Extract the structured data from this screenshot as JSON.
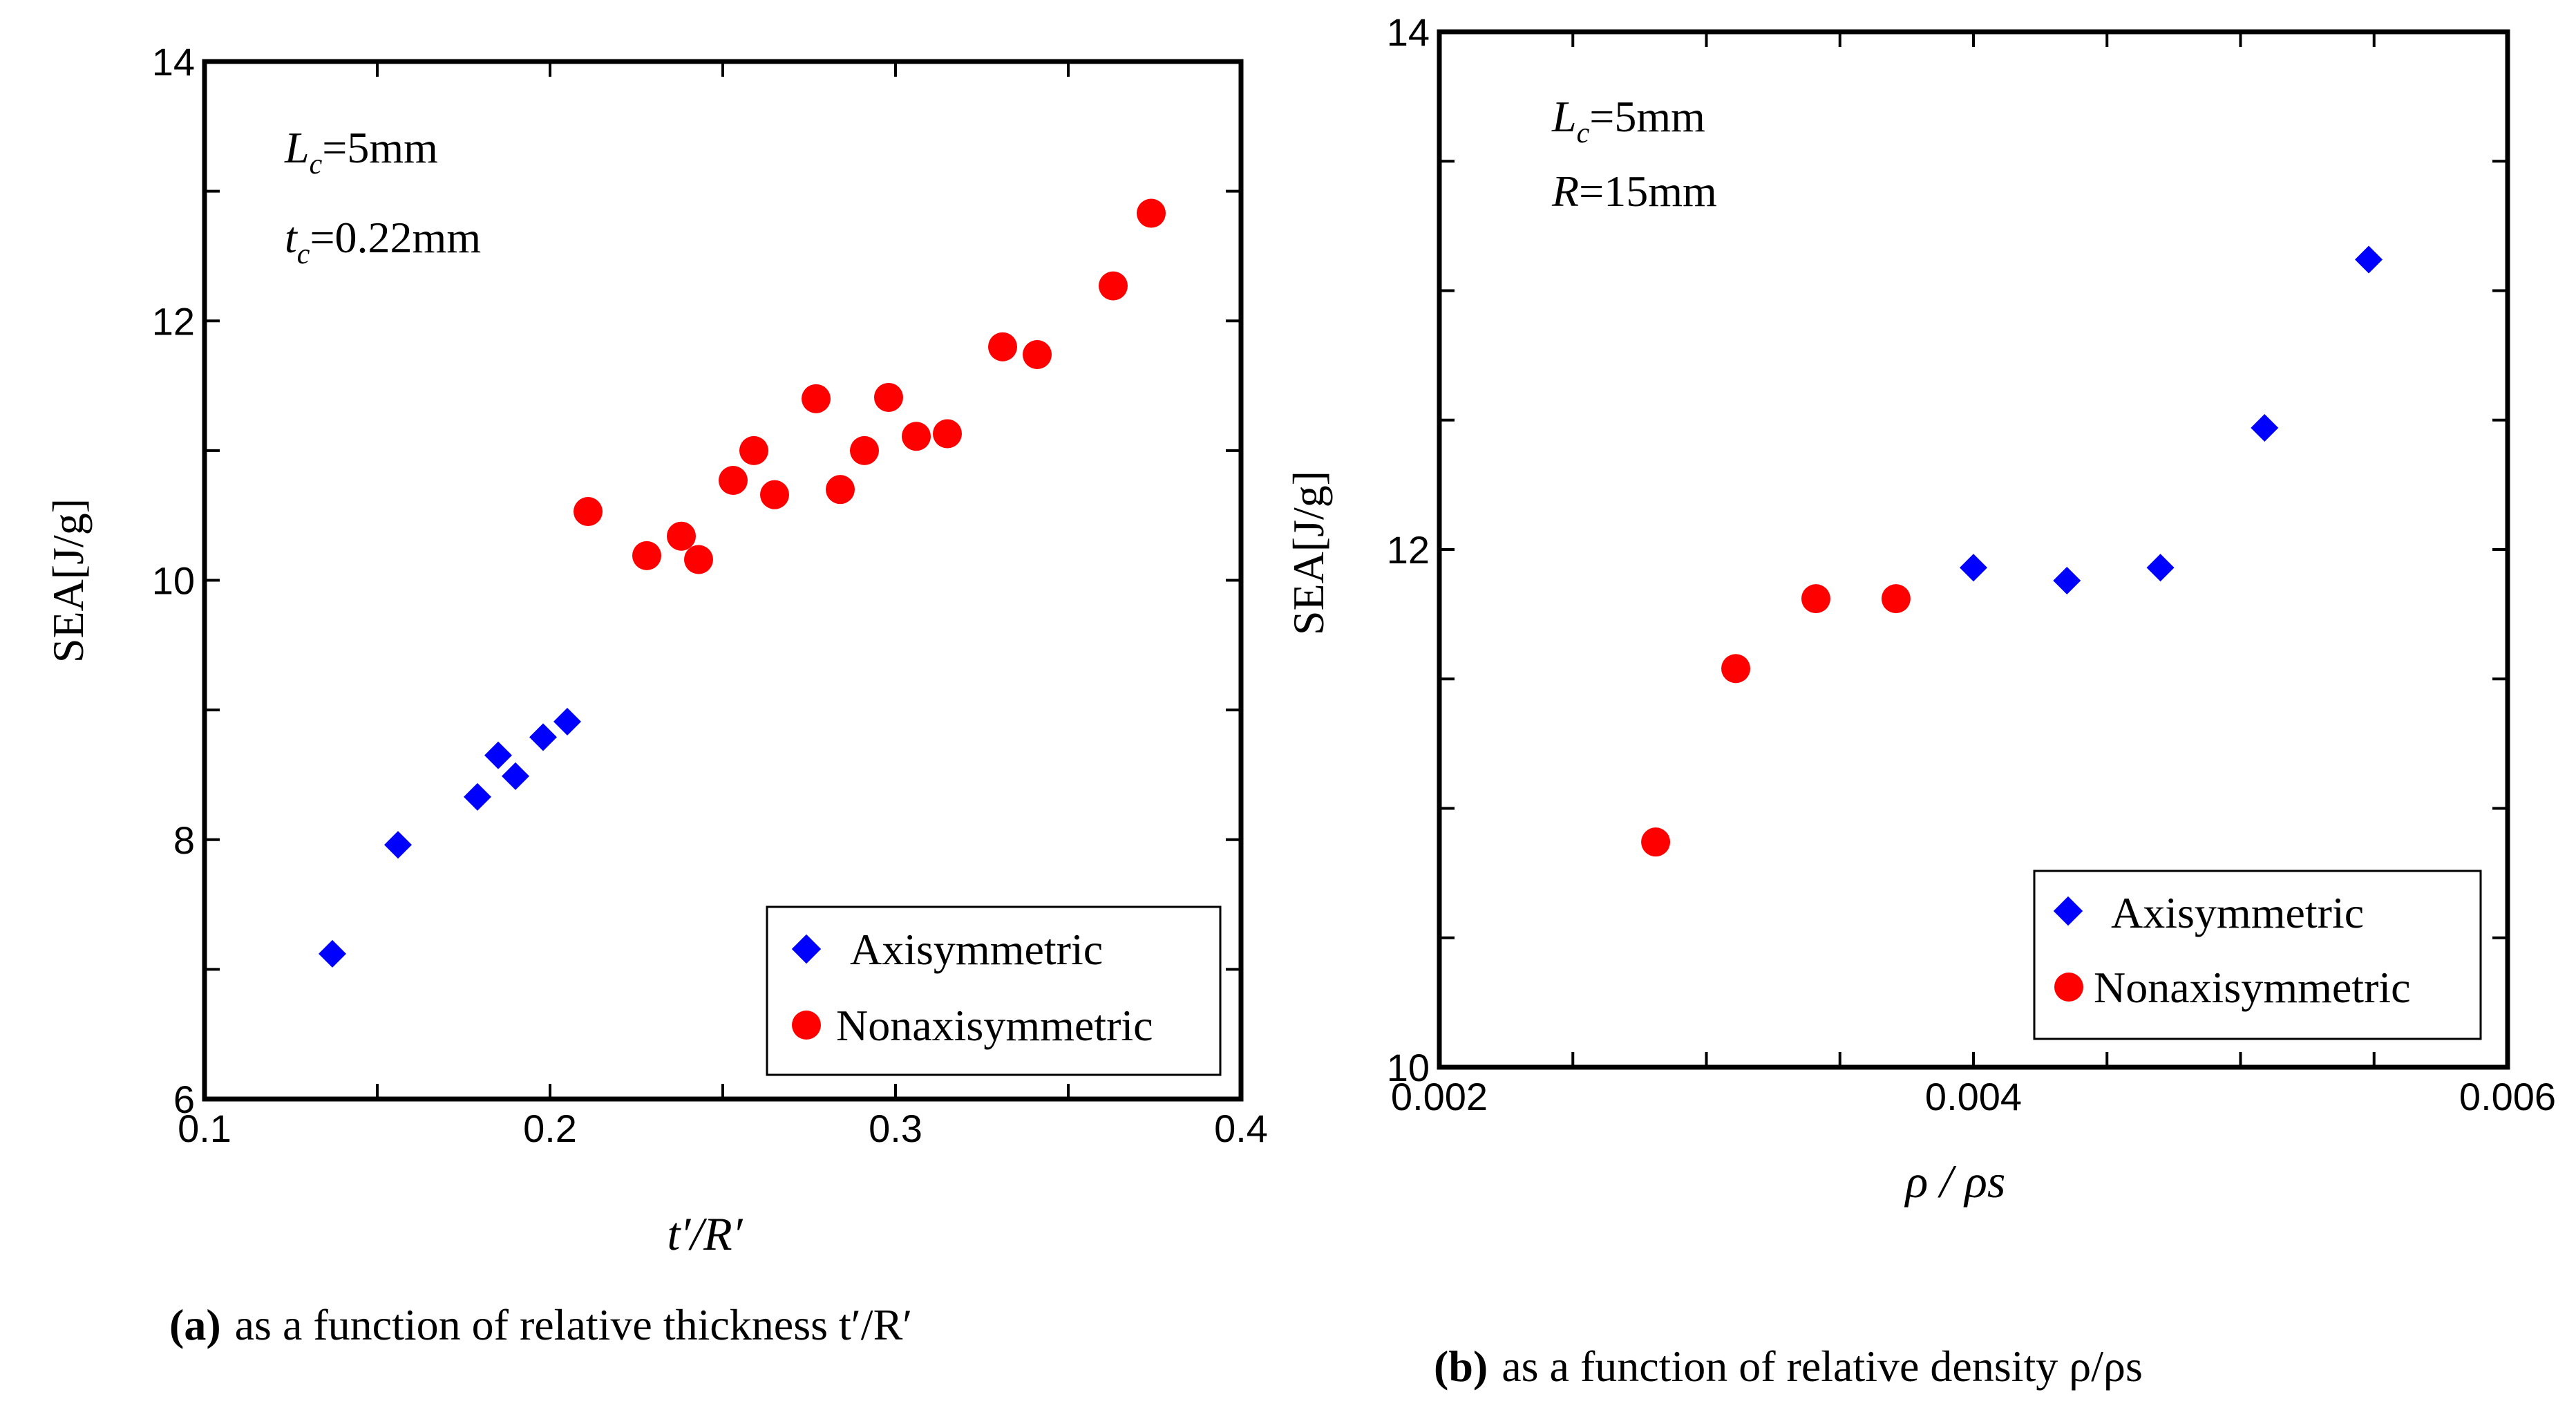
{
  "chart_data": [
    {
      "type": "scatter",
      "panel": "a",
      "ylabel": "SEA[J/g]",
      "xlabel": "t′/R′",
      "xlim": [
        0.1,
        0.4
      ],
      "ylim": [
        6,
        14
      ],
      "xticks": [
        "0.1",
        "0.2",
        "0.3",
        "0.4"
      ],
      "yticks": [
        "6",
        "8",
        "10",
        "12",
        "14"
      ],
      "annotations": [
        "Lc=5mm",
        "tc=0.22mm"
      ],
      "series": [
        {
          "name": "Axisymmetric",
          "marker": "diamond",
          "color": "#0000ff",
          "points": [
            [
              0.137,
              7.12
            ],
            [
              0.156,
              7.96
            ],
            [
              0.179,
              8.33
            ],
            [
              0.185,
              8.65
            ],
            [
              0.19,
              8.49
            ],
            [
              0.198,
              8.79
            ],
            [
              0.205,
              8.91
            ]
          ]
        },
        {
          "name": "Nonaxisymmetric",
          "marker": "circle",
          "color": "#ff0000",
          "points": [
            [
              0.211,
              10.53
            ],
            [
              0.228,
              10.19
            ],
            [
              0.238,
              10.34
            ],
            [
              0.243,
              10.16
            ],
            [
              0.253,
              10.77
            ],
            [
              0.259,
              11.0
            ],
            [
              0.265,
              10.66
            ],
            [
              0.277,
              11.4
            ],
            [
              0.284,
              10.7
            ],
            [
              0.291,
              11.0
            ],
            [
              0.298,
              11.41
            ],
            [
              0.306,
              11.11
            ],
            [
              0.315,
              11.13
            ],
            [
              0.331,
              11.8
            ],
            [
              0.341,
              11.74
            ],
            [
              0.363,
              12.27
            ],
            [
              0.374,
              12.83
            ]
          ]
        }
      ],
      "caption_label": "(a)",
      "caption_text": "as a function of relative thickness t′/R′"
    },
    {
      "type": "scatter",
      "panel": "b",
      "ylabel": "SEA[J/g]",
      "xlabel": "ρ / ρs",
      "xlim": [
        0.002,
        0.006
      ],
      "ylim": [
        10,
        14
      ],
      "xticks": [
        "0.002",
        "0.004",
        "0.006"
      ],
      "yticks": [
        "10",
        "12",
        "14"
      ],
      "annotations": [
        "Lc=5mm",
        "R=15mm"
      ],
      "series": [
        {
          "name": "Axisymmetric",
          "marker": "diamond",
          "color": "#0000ff",
          "points": [
            [
              0.004,
              11.93
            ],
            [
              0.00435,
              11.88
            ],
            [
              0.0047,
              11.93
            ],
            [
              0.00509,
              12.47
            ],
            [
              0.00548,
              13.12
            ]
          ]
        },
        {
          "name": "Nonaxisymmetric",
          "marker": "circle",
          "color": "#ff0000",
          "points": [
            [
              0.00281,
              10.87
            ],
            [
              0.00311,
              11.54
            ],
            [
              0.00341,
              11.81
            ],
            [
              0.00371,
              11.81
            ]
          ]
        }
      ],
      "caption_label": "(b)",
      "caption_text": "as a function of relative density ρ/ρs"
    }
  ]
}
